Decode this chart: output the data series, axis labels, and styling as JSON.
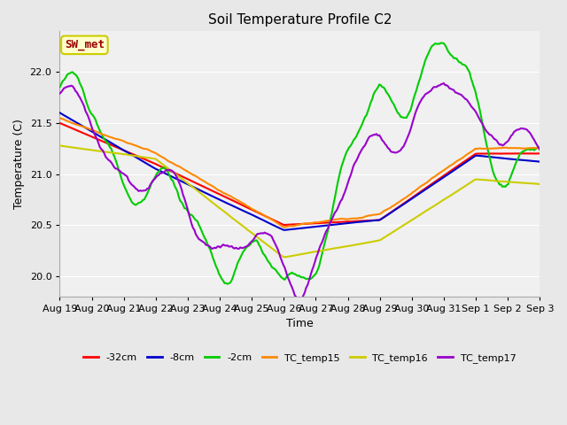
{
  "title": "Soil Temperature Profile C2",
  "xlabel": "Time",
  "ylabel": "Temperature (C)",
  "ylim": [
    19.8,
    22.4
  ],
  "annotation": "SW_met",
  "annotation_color": "#990000",
  "annotation_bg": "#ffffcc",
  "annotation_border": "#cccc00",
  "series": [
    {
      "label": "-32cm",
      "color": "#ff0000",
      "lw": 1.5
    },
    {
      "label": "-8cm",
      "color": "#0000cc",
      "lw": 1.5
    },
    {
      "label": "-2cm",
      "color": "#00cc00",
      "lw": 1.5
    },
    {
      "label": "TC_temp15",
      "color": "#ff8800",
      "lw": 1.5
    },
    {
      "label": "TC_temp16",
      "color": "#cccc00",
      "lw": 1.5
    },
    {
      "label": "TC_temp17",
      "color": "#9900cc",
      "lw": 1.5
    }
  ],
  "bg_color": "#e8e8e8",
  "plot_bg": "#f0f0f0",
  "grid_color": "#ffffff",
  "xtick_labels": [
    "Aug 19",
    "Aug 20",
    "Aug 21",
    "Aug 22",
    "Aug 23",
    "Aug 24",
    "Aug 25",
    "Aug 26",
    "Aug 27",
    "Aug 28",
    "Aug 29",
    "Aug 30",
    "Aug 31",
    "Sep 1",
    "Sep 2",
    "Sep 3"
  ],
  "n_points": 336,
  "days": 15
}
